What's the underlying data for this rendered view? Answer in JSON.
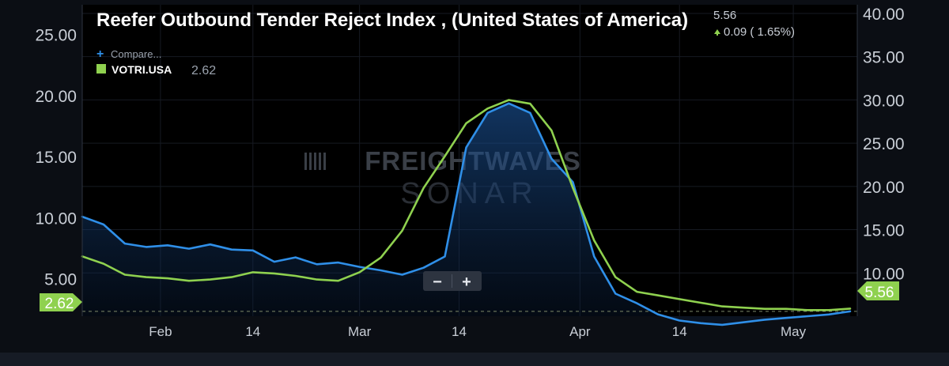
{
  "chart_data": {
    "type": "line",
    "title": "Reefer Outbound Tender Reject Index , (United States of America)",
    "header_value": "5.56",
    "header_change": "0.09 ( 1.65%)",
    "compare_label": "Compare...",
    "legend_series_code": "VOTRI.USA",
    "legend_series_value": "2.62",
    "watermark_line1": "FREIGHTWAVES",
    "watermark_line2": "SONAR",
    "zoom_out_label": "−",
    "zoom_in_label": "+",
    "left_axis": {
      "ticks": [
        "5.00",
        "10.00",
        "15.00",
        "20.00",
        "25.00"
      ],
      "ylim": [
        2,
        27.5
      ]
    },
    "right_axis": {
      "ticks": [
        "10.00",
        "15.00",
        "20.00",
        "25.00",
        "30.00",
        "35.00",
        "40.00"
      ],
      "ylim": [
        5,
        41
      ]
    },
    "x_ticks": [
      "Feb",
      "14",
      "Mar",
      "14",
      "Apr",
      "14",
      "May"
    ],
    "x_tick_days": [
      32,
      45,
      60,
      74,
      91,
      105,
      121
    ],
    "x_range_days": [
      21,
      130
    ],
    "left_badge": "2.62",
    "right_badge": "5.56",
    "colors": {
      "green": "#8fd14f",
      "blue": "#2f8fe8",
      "background": "#000000",
      "panel": "#0b0e14"
    },
    "series": [
      {
        "axis": "left",
        "color": "#8fd14f",
        "days": [
          21,
          24,
          27,
          30,
          33,
          36,
          39,
          42,
          45,
          48,
          51,
          54,
          57,
          60,
          63,
          66,
          69,
          72,
          75,
          78,
          81,
          84,
          87,
          90,
          93,
          96,
          99,
          102,
          105,
          108,
          111,
          114,
          117,
          120,
          123,
          126,
          129
        ],
        "values": [
          6.9,
          6.3,
          5.4,
          5.2,
          5.1,
          4.9,
          5.0,
          5.2,
          5.6,
          5.5,
          5.3,
          5.0,
          4.9,
          5.6,
          6.8,
          9.0,
          12.5,
          15.1,
          17.8,
          19.0,
          19.7,
          19.4,
          17.2,
          12.5,
          8.2,
          5.2,
          4.0,
          3.7,
          3.4,
          3.1,
          2.8,
          2.7,
          2.6,
          2.6,
          2.5,
          2.5,
          2.62
        ]
      },
      {
        "axis": "right",
        "color": "#2f8fe8",
        "days": [
          21,
          24,
          27,
          30,
          33,
          36,
          39,
          42,
          45,
          48,
          51,
          54,
          57,
          60,
          63,
          66,
          69,
          72,
          75,
          78,
          81,
          84,
          87,
          90,
          93,
          96,
          99,
          102,
          105,
          108,
          111,
          114,
          117,
          120,
          123,
          126,
          129
        ],
        "values": [
          16.5,
          15.6,
          13.4,
          13.0,
          13.2,
          12.8,
          13.3,
          12.7,
          12.6,
          11.3,
          11.8,
          11.0,
          11.2,
          10.7,
          10.3,
          9.8,
          10.6,
          11.9,
          24.5,
          28.5,
          29.6,
          28.5,
          23.2,
          20.5,
          11.9,
          7.6,
          6.5,
          5.2,
          4.5,
          4.2,
          4.0,
          4.3,
          4.6,
          4.8,
          5.0,
          5.2,
          5.56
        ]
      }
    ]
  }
}
